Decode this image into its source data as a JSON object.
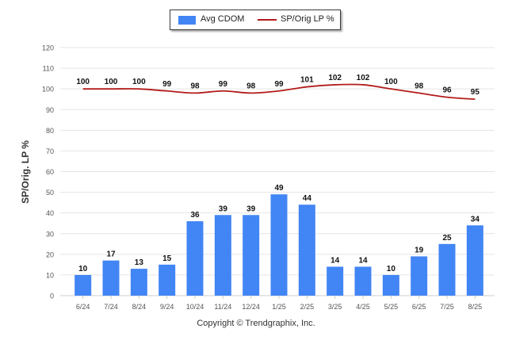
{
  "legend": {
    "bar_label": "Avg CDOM",
    "line_label": "SP/Orig LP %"
  },
  "copyright": "Copyright © Trendgraphix, Inc.",
  "colors": {
    "bar": "#4285f4",
    "line": "#b31b1b",
    "grid": "#e4e4e4",
    "axis_text": "#555555",
    "label_text": "#111111"
  },
  "chart_data": {
    "type": "bar",
    "categories": [
      "6/24",
      "7/24",
      "8/24",
      "9/24",
      "10/24",
      "11/24",
      "12/24",
      "1/25",
      "2/25",
      "3/25",
      "4/25",
      "5/25",
      "6/25",
      "7/25",
      "8/25"
    ],
    "series": [
      {
        "name": "Avg CDOM",
        "type": "bar",
        "values": [
          10,
          17,
          13,
          15,
          36,
          39,
          39,
          49,
          44,
          14,
          14,
          10,
          19,
          25,
          34
        ]
      },
      {
        "name": "SP/Orig LP %",
        "type": "line",
        "values": [
          100,
          100,
          100,
          99,
          98,
          99,
          98,
          99,
          101,
          102,
          102,
          100,
          98,
          96,
          95
        ]
      }
    ],
    "ylabel": "SP/Orig. LP %",
    "xlabel": "",
    "ylim": [
      0,
      120
    ],
    "yticks": [
      0,
      10,
      20,
      30,
      40,
      50,
      60,
      70,
      80,
      90,
      100,
      110,
      120
    ],
    "grid": true,
    "legend_position": "top-center"
  }
}
